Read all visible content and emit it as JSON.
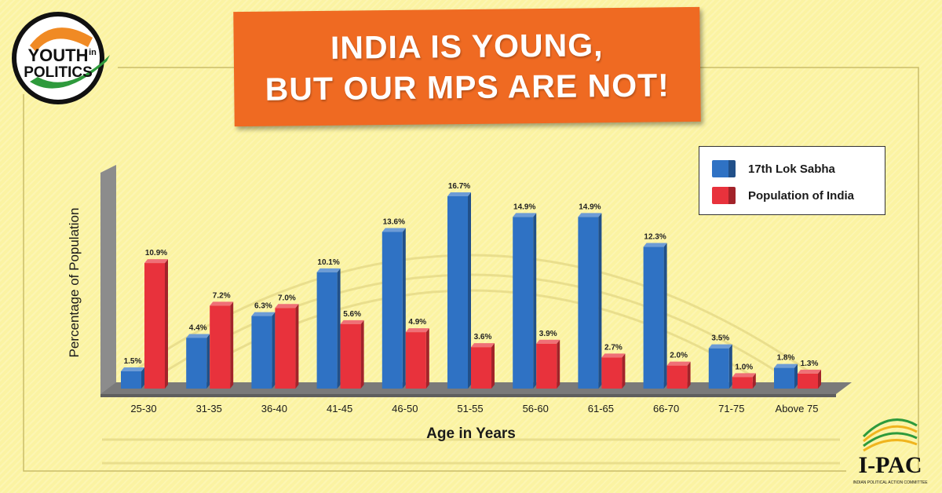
{
  "banner": {
    "line1": "INDIA IS YOUNG,",
    "line2": "BUT OUR MPS ARE NOT!"
  },
  "logo_left": {
    "word1": "YOUTH",
    "word2": "in",
    "word3": "POLITICS",
    "colors": {
      "saffron": "#f08a24",
      "green": "#2e9a3c",
      "ink": "#111111"
    }
  },
  "logo_right": {
    "name": "I-PAC",
    "tagline": "INDIAN POLITICAL ACTION COMMITTEE"
  },
  "colors": {
    "lok_sabha": "#2f72c4",
    "population": "#e8323c",
    "floor": "#7a7a7a",
    "wall": "#8c8c8c"
  },
  "chart_data": {
    "type": "bar",
    "title": "",
    "xlabel": "Age in Years",
    "ylabel": "Percentage of Population",
    "ylim": [
      0,
      17
    ],
    "grid": false,
    "legend_position": "top-right",
    "categories": [
      "25-30",
      "31-35",
      "36-40",
      "41-45",
      "46-50",
      "51-55",
      "56-60",
      "61-65",
      "66-70",
      "71-75",
      "Above 75"
    ],
    "series": [
      {
        "name": "17th Lok Sabha",
        "values": [
          1.5,
          4.4,
          6.3,
          10.1,
          13.6,
          16.7,
          14.9,
          14.9,
          12.3,
          3.5,
          1.8
        ],
        "labels": [
          "1.5%",
          "4.4%",
          "6.3%",
          "10.1%",
          "13.6%",
          "16.7%",
          "14.9%",
          "14.9%",
          "12.3%",
          "3.5%",
          "1.8%"
        ]
      },
      {
        "name": "Population of India",
        "values": [
          10.9,
          7.2,
          7.0,
          5.6,
          4.9,
          3.6,
          3.9,
          2.7,
          2.0,
          1.0,
          1.3
        ],
        "labels": [
          "10.9%",
          "7.2%",
          "7.0%",
          "5.6%",
          "4.9%",
          "3.6%",
          "3.9%",
          "2.7%",
          "2.0%",
          "1.0%",
          "1.3%"
        ]
      }
    ]
  }
}
